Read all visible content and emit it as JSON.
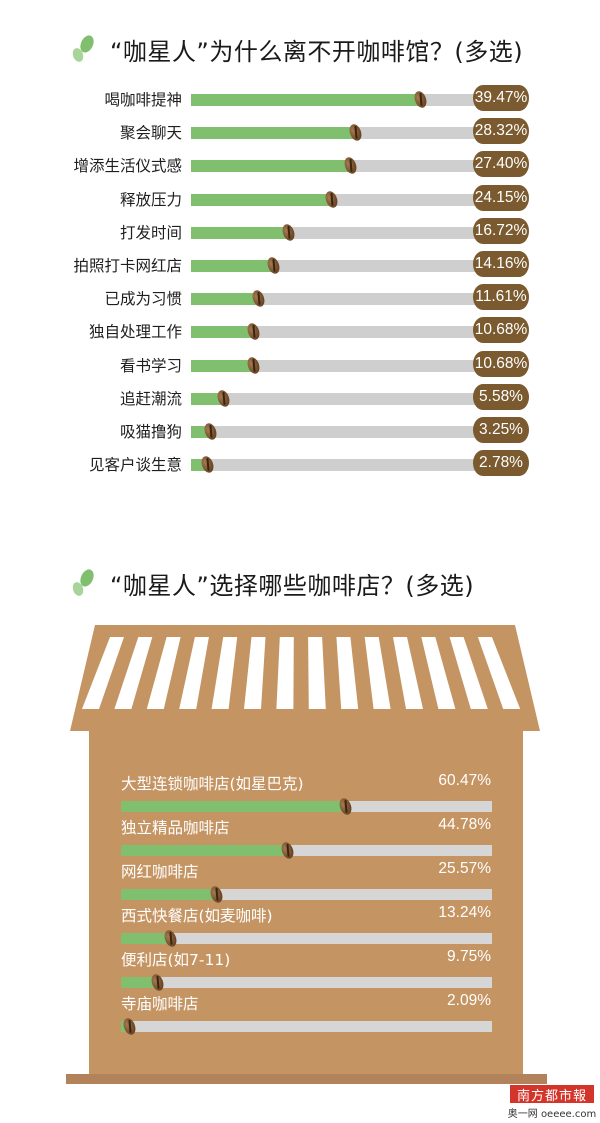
{
  "chart_data": [
    {
      "type": "bar",
      "title": "“咖星人”为什么离不开咖啡馆？(多选)",
      "categories": [
        "喝咖啡提神",
        "聚会聊天",
        "增添生活仪式感",
        "释放压力",
        "打发时间",
        "拍照打卡网红店",
        "已成为习惯",
        "独自处理工作",
        "看书学习",
        "追赶潮流",
        "吸猫撸狗",
        "见客户谈生意"
      ],
      "values": [
        39.47,
        28.32,
        27.4,
        24.15,
        16.72,
        14.16,
        11.61,
        10.68,
        10.68,
        5.58,
        3.25,
        2.78
      ],
      "labels": [
        "39.47%",
        "28.32%",
        "27.40%",
        "24.15%",
        "16.72%",
        "14.16%",
        "11.61%",
        "10.68%",
        "10.68%",
        "5.58%",
        "3.25%",
        "2.78%"
      ],
      "xlim": [
        0,
        50
      ],
      "colors": {
        "fill": "#7fbf6e",
        "track": "#cfcfcf",
        "badge": "#7a5a2e"
      }
    },
    {
      "type": "bar",
      "title": "“咖星人”选择哪些咖啡店？(多选)",
      "categories": [
        "大型连锁咖啡店(如星巴克)",
        "独立精品咖啡店",
        "网红咖啡店",
        "西式快餐店(如麦咖啡)",
        "便利店(如7-11)",
        "寺庙咖啡店"
      ],
      "values": [
        60.47,
        44.78,
        25.57,
        13.24,
        9.75,
        2.09
      ],
      "labels": [
        "60.47%",
        "44.78%",
        "25.57%",
        "13.24%",
        "9.75%",
        "2.09%"
      ],
      "xlim": [
        0,
        100
      ],
      "colors": {
        "fill": "#7fbf6e",
        "track": "#d6d6d6",
        "store": "#c59463"
      }
    }
  ],
  "logo": {
    "top": "南方都市報",
    "bottom": "奥一网 oeeee.com"
  }
}
